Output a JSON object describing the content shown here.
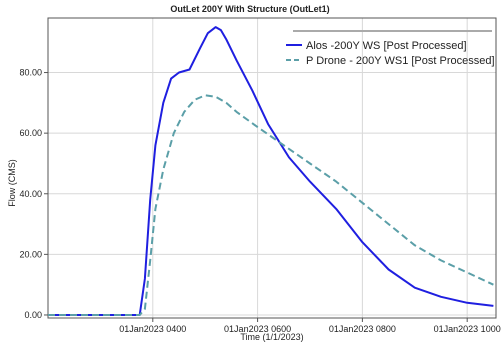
{
  "chart_data": {
    "type": "line",
    "title": "OutLet 200Y With Structure (OutLet1)",
    "xlabel": "Time (1/1/2023)",
    "ylabel": "Flow (CMS)",
    "xlim": [
      2.0,
      10.55
    ],
    "ylim": [
      -1.0,
      98.0
    ],
    "x_ticks": [
      {
        "value": 4,
        "label": "01Jan2023 0400"
      },
      {
        "value": 6,
        "label": "01Jan2023 0600"
      },
      {
        "value": 8,
        "label": "01Jan2023 0800"
      },
      {
        "value": 10,
        "label": "01Jan2023 1000"
      }
    ],
    "y_ticks": [
      {
        "value": 0,
        "label": "0.00"
      },
      {
        "value": 20,
        "label": "20.00"
      },
      {
        "value": 40,
        "label": "40.00"
      },
      {
        "value": 60,
        "label": "60.00"
      },
      {
        "value": 80,
        "label": "80.00"
      }
    ],
    "x_unit_note": "x values are hours of 1 Jan 2023",
    "grid": true,
    "legend_position": "top-right",
    "series": [
      {
        "name": "Alos -200Y WS [Post Processed]",
        "color": "#1f1fe0",
        "dash": "solid",
        "x": [
          2.0,
          3.5,
          3.75,
          3.85,
          3.95,
          4.05,
          4.2,
          4.35,
          4.5,
          4.7,
          4.9,
          5.05,
          5.2,
          5.3,
          5.4,
          5.6,
          5.9,
          6.2,
          6.6,
          7.0,
          7.5,
          8.0,
          8.5,
          9.0,
          9.5,
          10.0,
          10.5
        ],
        "values": [
          0.0,
          0.0,
          0.0,
          12.0,
          38.0,
          56.0,
          70.0,
          78.0,
          80.0,
          81.0,
          88.0,
          93.0,
          95.0,
          94.0,
          91.0,
          84.0,
          74.0,
          63.0,
          52.0,
          44.0,
          35.0,
          24.0,
          15.0,
          9.0,
          6.0,
          4.0,
          3.0
        ]
      },
      {
        "name": "P Drone - 200Y WS1 [Post Processed]",
        "color": "#5b9fa8",
        "dash": "dashed",
        "x": [
          2.0,
          3.75,
          3.85,
          3.95,
          4.05,
          4.2,
          4.4,
          4.6,
          4.8,
          5.0,
          5.2,
          5.4,
          5.6,
          6.0,
          6.5,
          7.0,
          7.5,
          8.0,
          8.5,
          9.0,
          9.5,
          10.0,
          10.5
        ],
        "values": [
          0.0,
          0.0,
          2.0,
          18.0,
          35.0,
          48.0,
          60.0,
          67.0,
          71.0,
          72.5,
          72.0,
          70.0,
          67.0,
          62.0,
          56.0,
          50.0,
          44.0,
          37.0,
          30.0,
          23.0,
          18.0,
          14.0,
          10.0
        ]
      }
    ]
  }
}
